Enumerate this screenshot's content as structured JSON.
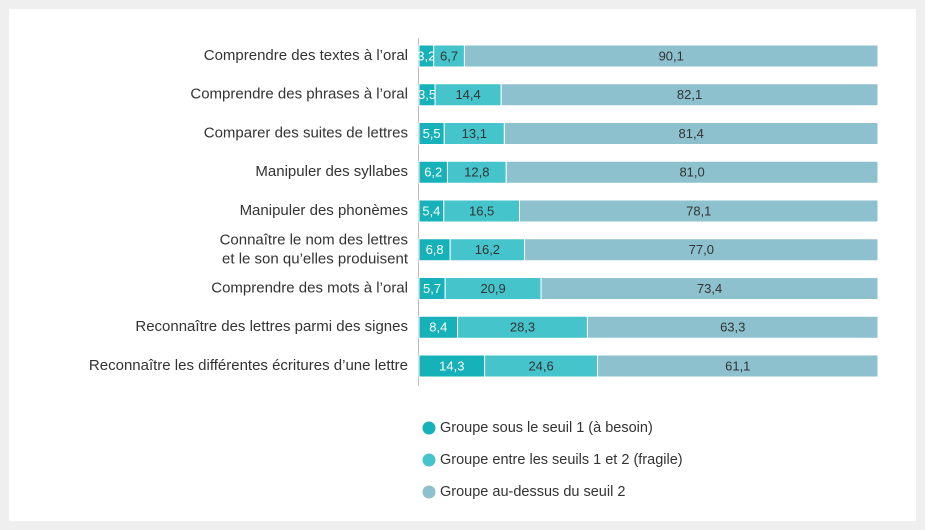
{
  "chart_data": {
    "type": "stacked-bar-horizontal",
    "categories": [
      "Comprendre des textes à l’oral",
      "Comprendre des phrases à l’oral",
      "Comparer des suites de lettres",
      "Manipuler des syllabes",
      "Manipuler des phonèmes",
      "Connaître le nom des lettres\net le son qu’elles produisent",
      "Comprendre des mots à l’oral",
      "Reconnaître des lettres parmi des signes",
      "Reconnaître les différentes écritures d’une lettre"
    ],
    "series": [
      {
        "name": "Groupe sous le seuil 1 (à besoin)",
        "color": "#16b1b9",
        "values": [
          3.2,
          3.5,
          5.5,
          6.2,
          5.4,
          6.8,
          5.7,
          8.4,
          14.3
        ],
        "value_labels": [
          "3,2",
          "3,5",
          "5,5",
          "6,2",
          "5,4",
          "6,8",
          "5,7",
          "8,4",
          "14,3"
        ]
      },
      {
        "name": "Groupe entre les seuils 1 et 2 (fragile)",
        "color": "#45c4cc",
        "values": [
          6.7,
          14.4,
          13.1,
          12.8,
          16.5,
          16.2,
          20.9,
          28.3,
          24.6
        ],
        "value_labels": [
          "6,7",
          "14,4",
          "13,1",
          "12,8",
          "16,5",
          "16,2",
          "20,9",
          "28,3",
          "24,6"
        ]
      },
      {
        "name": "Groupe au-dessus du seuil 2",
        "color": "#8cc1cd",
        "values": [
          90.1,
          82.1,
          81.4,
          81.0,
          78.1,
          77.0,
          73.4,
          63.3,
          61.1
        ],
        "value_labels": [
          "90,1",
          "82,1",
          "81,4",
          "81,0",
          "78,1",
          "77,0",
          "73,4",
          "63,3",
          "61,1"
        ]
      }
    ],
    "xlim": [
      0,
      100
    ],
    "legend": "bottom"
  }
}
